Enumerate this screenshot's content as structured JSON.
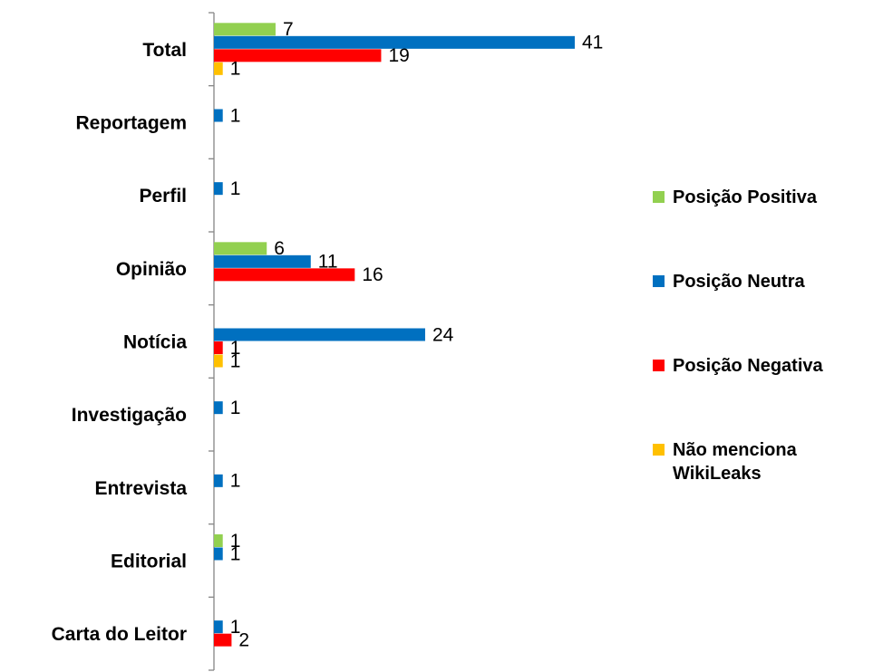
{
  "chart_data": {
    "type": "bar",
    "orientation": "horizontal",
    "categories": [
      "Total",
      "Reportagem",
      "Perfil",
      "Opinião",
      "Notícia",
      "Investigação",
      "Entrevista",
      "Editorial",
      "Carta do Leitor"
    ],
    "series": [
      {
        "name": "Posição Positiva",
        "color": "#92d050",
        "values": [
          7,
          null,
          null,
          6,
          null,
          null,
          null,
          1,
          null
        ]
      },
      {
        "name": "Posição Neutra",
        "color": "#0070c0",
        "values": [
          41,
          1,
          1,
          11,
          24,
          1,
          1,
          1,
          1
        ]
      },
      {
        "name": "Posição Negativa",
        "color": "#ff0000",
        "values": [
          19,
          null,
          null,
          16,
          1,
          null,
          null,
          null,
          2
        ]
      },
      {
        "name": "Não menciona WikiLeaks",
        "color": "#ffc000",
        "values": [
          1,
          null,
          null,
          null,
          1,
          null,
          null,
          null,
          null
        ]
      }
    ],
    "legend": "right"
  }
}
